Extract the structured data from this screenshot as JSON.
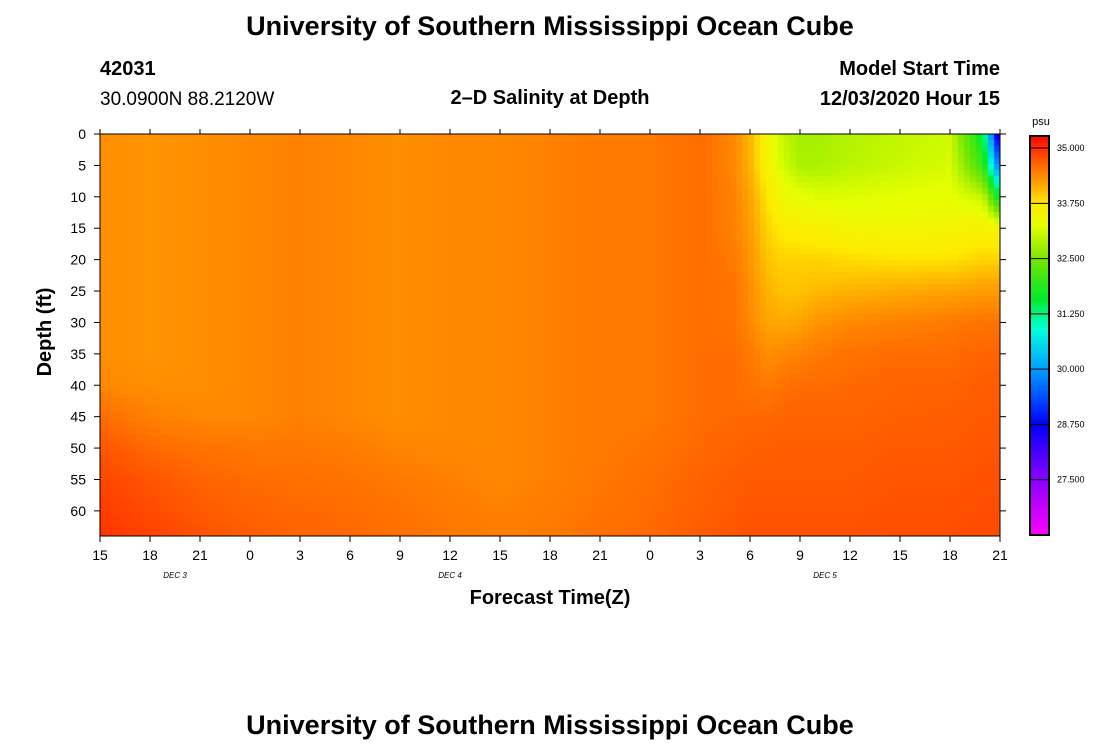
{
  "header": {
    "title_top": "University of Southern Mississippi Ocean Cube",
    "title_bottom": "University of Southern Mississippi Ocean Cube",
    "station_id": "42031",
    "station_coords": "30.0900N 88.2120W",
    "chart_title": "2–D Salinity at Depth",
    "model_start_label": "Model Start Time",
    "model_start_value": "12/03/2020 Hour 15"
  },
  "chart_data": {
    "type": "heatmap",
    "title": "2–D Salinity at Depth",
    "xlabel": "Forecast Time(Z)",
    "ylabel": "Depth (ft)",
    "x_tick_labels": [
      "15",
      "18",
      "21",
      "0",
      "3",
      "6",
      "9",
      "12",
      "15",
      "18",
      "21",
      "0",
      "3",
      "6",
      "9",
      "12",
      "15",
      "18",
      "21"
    ],
    "x_day_labels": [
      {
        "label": "DEC 3",
        "tick_index": 1.5
      },
      {
        "label": "DEC 4",
        "tick_index": 7
      },
      {
        "label": "DEC 5",
        "tick_index": 14.5
      }
    ],
    "xlim_hours": [
      0,
      54
    ],
    "y_ticks": [
      0,
      5,
      10,
      15,
      20,
      25,
      30,
      35,
      40,
      45,
      50,
      55,
      60
    ],
    "ylim": [
      0,
      64
    ],
    "colorbar": {
      "unit": "psu",
      "range": [
        26.25,
        35.25
      ],
      "tick_labels": [
        "35.000",
        "33.750",
        "32.500",
        "31.250",
        "30.000",
        "28.750",
        "27.500"
      ],
      "tick_values": [
        35.0,
        33.75,
        32.5,
        31.25,
        30.0,
        28.75,
        27.5
      ]
    },
    "grid_hours": [
      0,
      3,
      6,
      9,
      12,
      15,
      18,
      21,
      24,
      27,
      30,
      33,
      36,
      38,
      39,
      40,
      41,
      42,
      43,
      45,
      48,
      51,
      53,
      54
    ],
    "grid_depths": [
      0,
      5,
      10,
      15,
      20,
      25,
      30,
      35,
      40,
      45,
      50,
      55,
      60,
      64
    ],
    "salinity_psu": [
      [
        34.35,
        34.3,
        34.35,
        34.4,
        34.45,
        34.4,
        34.35,
        34.4,
        34.4,
        34.45,
        34.5,
        34.5,
        34.6,
        34.4,
        34.1,
        33.5,
        33.0,
        32.8,
        32.8,
        32.9,
        33.0,
        33.1,
        31.5,
        28.0
      ],
      [
        34.35,
        34.3,
        34.35,
        34.4,
        34.45,
        34.4,
        34.35,
        34.4,
        34.4,
        34.45,
        34.5,
        34.5,
        34.6,
        34.4,
        34.1,
        33.6,
        33.1,
        32.85,
        32.85,
        32.95,
        33.05,
        33.15,
        32.0,
        29.5
      ],
      [
        34.35,
        34.3,
        34.35,
        34.4,
        34.45,
        34.4,
        34.35,
        34.4,
        34.4,
        34.45,
        34.5,
        34.5,
        34.6,
        34.45,
        34.2,
        33.8,
        33.4,
        33.3,
        33.2,
        33.2,
        33.25,
        33.3,
        33.0,
        31.5
      ],
      [
        34.35,
        34.3,
        34.35,
        34.4,
        34.45,
        34.4,
        34.35,
        34.4,
        34.4,
        34.45,
        34.5,
        34.5,
        34.6,
        34.45,
        34.25,
        33.9,
        33.7,
        33.65,
        33.6,
        33.5,
        33.45,
        33.5,
        33.6,
        33.5
      ],
      [
        34.35,
        34.3,
        34.35,
        34.4,
        34.45,
        34.4,
        34.35,
        34.4,
        34.4,
        34.45,
        34.5,
        34.5,
        34.6,
        34.5,
        34.3,
        34.0,
        33.9,
        33.9,
        33.9,
        33.85,
        33.8,
        33.8,
        33.9,
        33.9
      ],
      [
        34.35,
        34.3,
        34.35,
        34.4,
        34.45,
        34.4,
        34.35,
        34.4,
        34.4,
        34.45,
        34.5,
        34.5,
        34.6,
        34.55,
        34.35,
        34.1,
        34.0,
        34.0,
        34.05,
        34.1,
        34.15,
        34.2,
        34.25,
        34.25
      ],
      [
        34.35,
        34.3,
        34.35,
        34.4,
        34.45,
        34.4,
        34.35,
        34.4,
        34.4,
        34.45,
        34.5,
        34.5,
        34.6,
        34.55,
        34.4,
        34.2,
        34.15,
        34.2,
        34.3,
        34.4,
        34.45,
        34.5,
        34.55,
        34.55
      ],
      [
        34.35,
        34.3,
        34.35,
        34.4,
        34.45,
        34.4,
        34.35,
        34.4,
        34.4,
        34.45,
        34.5,
        34.5,
        34.6,
        34.6,
        34.5,
        34.35,
        34.4,
        34.45,
        34.5,
        34.55,
        34.6,
        34.6,
        34.65,
        34.65
      ],
      [
        34.4,
        34.35,
        34.35,
        34.4,
        34.45,
        34.4,
        34.35,
        34.4,
        34.4,
        34.45,
        34.5,
        34.5,
        34.6,
        34.6,
        34.55,
        34.5,
        34.55,
        34.6,
        34.6,
        34.62,
        34.65,
        34.65,
        34.7,
        34.7
      ],
      [
        34.6,
        34.45,
        34.4,
        34.4,
        34.45,
        34.4,
        34.35,
        34.4,
        34.4,
        34.45,
        34.5,
        34.5,
        34.6,
        34.62,
        34.62,
        34.62,
        34.65,
        34.65,
        34.65,
        34.65,
        34.68,
        34.7,
        34.72,
        34.72
      ],
      [
        34.75,
        34.62,
        34.55,
        34.52,
        34.52,
        34.48,
        34.42,
        34.4,
        34.4,
        34.45,
        34.5,
        34.55,
        34.62,
        34.65,
        34.68,
        34.68,
        34.7,
        34.7,
        34.7,
        34.7,
        34.72,
        34.72,
        34.75,
        34.75
      ],
      [
        34.85,
        34.75,
        34.65,
        34.6,
        34.58,
        34.55,
        34.5,
        34.45,
        34.4,
        34.45,
        34.52,
        34.58,
        34.65,
        34.7,
        34.72,
        34.72,
        34.72,
        34.72,
        34.72,
        34.72,
        34.75,
        34.75,
        34.78,
        34.78
      ],
      [
        34.92,
        34.82,
        34.72,
        34.65,
        34.62,
        34.6,
        34.55,
        34.5,
        34.45,
        34.48,
        34.55,
        34.6,
        34.68,
        34.72,
        34.75,
        34.75,
        34.75,
        34.75,
        34.75,
        34.75,
        34.78,
        34.78,
        34.8,
        34.8
      ],
      [
        34.98,
        34.88,
        34.78,
        34.7,
        34.65,
        34.62,
        34.58,
        34.52,
        34.48,
        34.5,
        34.58,
        34.62,
        34.7,
        34.75,
        34.78,
        34.78,
        34.78,
        34.78,
        34.78,
        34.78,
        34.8,
        34.8,
        34.82,
        34.82
      ]
    ]
  }
}
